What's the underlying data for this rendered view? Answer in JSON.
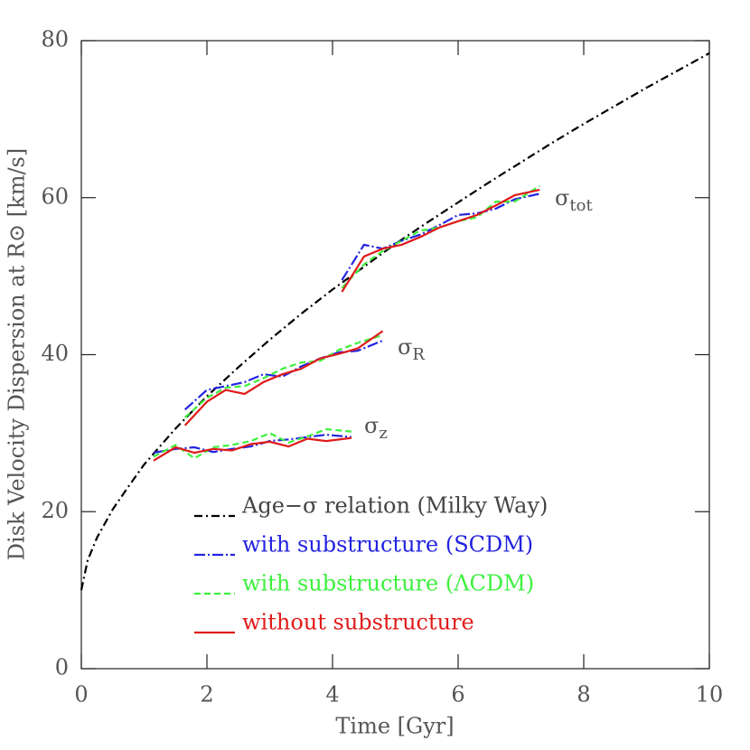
{
  "chart_data": {
    "type": "line",
    "xlabel": "Time [Gyr]",
    "ylabel": "Disk Velocity Dispersion at R⊙ [km/s]",
    "xlim": [
      0,
      10
    ],
    "xticks": [
      0,
      2,
      4,
      6,
      8,
      10
    ],
    "ylim": [
      0,
      80
    ],
    "yticks": [
      0,
      20,
      40,
      60,
      80
    ],
    "annotations": [
      {
        "text": "σ",
        "sub": "tot"
      },
      {
        "text": "σ",
        "sub": "R"
      },
      {
        "text": "σ",
        "sub": "z"
      }
    ],
    "series": [
      {
        "name": "Age−σ relation (Milky Way)",
        "color": "#000000",
        "dash": "9 4 2 4",
        "x": [
          0,
          0.1,
          0.25,
          0.5,
          0.75,
          1,
          1.5,
          2,
          2.5,
          3,
          3.5,
          4,
          4.5,
          5,
          5.5,
          6,
          6.5,
          7,
          7.5,
          8,
          8.5,
          9,
          9.5,
          10
        ],
        "values": [
          10,
          13.8,
          16.7,
          20.3,
          23.2,
          26,
          30.6,
          34.7,
          38.4,
          41.9,
          45.2,
          48.3,
          51.2,
          54.1,
          56.8,
          59.4,
          62,
          64.5,
          67,
          69.4,
          71.7,
          74,
          76.2,
          78.4
        ]
      },
      {
        "name": "with substructure (SCDM)",
        "color": "#2323e0",
        "dash": "12 3 2 3",
        "x": [
          1.15,
          1.5,
          1.8,
          2.1,
          2.4,
          2.7,
          3.0,
          3.3,
          3.6,
          3.9,
          4.3,
          null,
          1.65,
          2.0,
          2.3,
          2.6,
          2.9,
          3.2,
          3.5,
          3.8,
          4.1,
          4.4,
          4.8,
          null,
          4.15,
          4.5,
          4.8,
          5.1,
          5.4,
          5.7,
          6.0,
          6.3,
          6.6,
          6.9,
          7.3
        ],
        "values": [
          27.5,
          28,
          28.2,
          27.6,
          28,
          28.3,
          29,
          29.2,
          29.5,
          29.8,
          29.5,
          null,
          33,
          35.5,
          36,
          36.5,
          37.5,
          37.2,
          38.5,
          39.5,
          40.3,
          40.5,
          41.8,
          null,
          49.5,
          54,
          53.5,
          54.5,
          55.3,
          56.5,
          57.8,
          58,
          58.6,
          59.8,
          60.5
        ]
      },
      {
        "name": "with substructure (ΛCDM)",
        "color": "#3ef03e",
        "dash": "7 4",
        "x": [
          1.15,
          1.5,
          1.8,
          2.1,
          2.4,
          2.7,
          3.0,
          3.3,
          3.6,
          3.9,
          4.3,
          null,
          1.65,
          2.0,
          2.3,
          2.6,
          2.9,
          3.2,
          3.5,
          3.8,
          4.1,
          4.4,
          4.8,
          null,
          4.15,
          4.5,
          4.8,
          5.1,
          5.4,
          5.7,
          6.0,
          6.3,
          6.6,
          6.9,
          7.3
        ],
        "values": [
          27,
          28.5,
          26.8,
          28.2,
          28.5,
          29,
          30,
          28.8,
          29.6,
          30.5,
          30.2,
          null,
          32,
          34.5,
          35.8,
          36,
          37,
          38.2,
          39,
          39.2,
          40.6,
          41.5,
          42.5,
          null,
          48.5,
          51.5,
          53.2,
          54.5,
          55.8,
          56.2,
          57,
          57.5,
          59.5,
          59.5,
          61.5
        ]
      },
      {
        "name": "without substructure",
        "color": "#e01a1a",
        "dash": "",
        "x": [
          1.15,
          1.5,
          1.8,
          2.1,
          2.4,
          2.7,
          3.0,
          3.3,
          3.6,
          3.9,
          4.3,
          null,
          1.65,
          2.0,
          2.3,
          2.6,
          2.9,
          3.2,
          3.5,
          3.8,
          4.1,
          4.4,
          4.8,
          null,
          4.15,
          4.5,
          4.8,
          5.1,
          5.4,
          5.7,
          6.0,
          6.3,
          6.6,
          6.9,
          7.3
        ],
        "values": [
          26.5,
          28.2,
          27.5,
          28,
          27.8,
          28.6,
          28.9,
          28.3,
          29.3,
          29,
          29.4,
          null,
          31,
          34,
          35.5,
          35,
          36.5,
          37.5,
          38.2,
          39.5,
          40.1,
          40.8,
          43,
          null,
          48,
          52.5,
          53.5,
          54,
          55,
          56.2,
          57,
          57.8,
          59,
          60.3,
          61
        ]
      }
    ]
  }
}
